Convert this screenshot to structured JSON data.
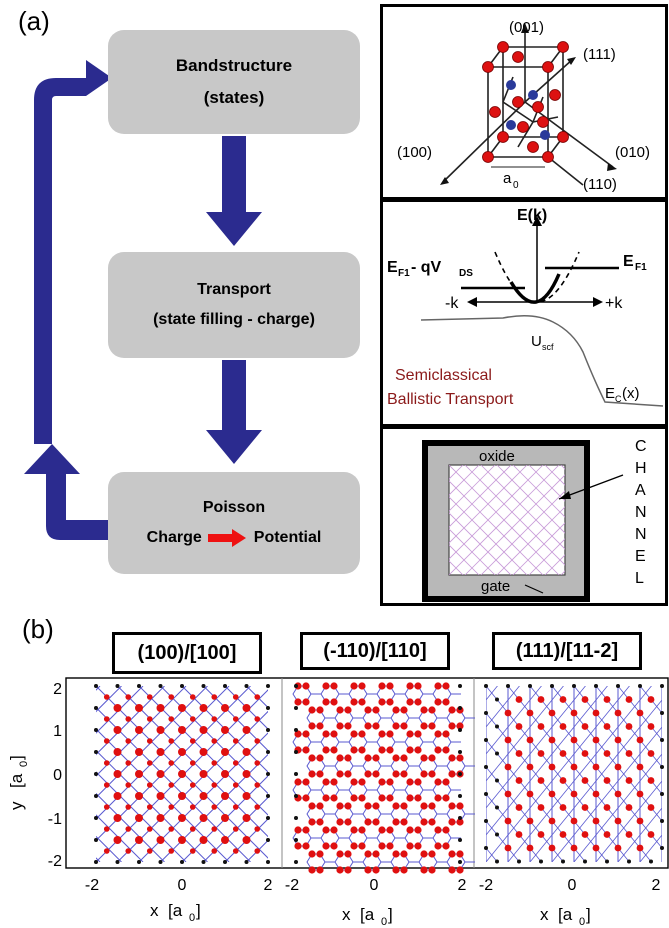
{
  "panel_a": {
    "label": "(a)",
    "flow": {
      "bandstructure": {
        "title": "Bandstructure",
        "subtitle": "(states)"
      },
      "transport": {
        "title": "Transport",
        "subtitle": "(state filling - charge)"
      },
      "poisson": {
        "title": "Poisson",
        "charge": "Charge",
        "potential": "Potential"
      }
    },
    "crystal": {
      "dir_001": "(001)",
      "dir_111": "(111)",
      "dir_100": "(100)",
      "dir_010": "(010)",
      "dir_110": "(110)",
      "a0": "a",
      "a0_sub": "0"
    },
    "transport_diagram": {
      "ek": "E(k)",
      "ef1_left": "E",
      "ef1_left_sub": "F1",
      "ef1_left_tail": " - qV",
      "ef1_left_tail_sub": "DS",
      "ef1_right": "E",
      "ef1_right_sub": "F1",
      "minus_k": "-k",
      "plus_k": "+k",
      "uscf": "U",
      "uscf_sub": "scf",
      "caption_line1": "Semiclassical",
      "caption_line2": "Ballistic Transport",
      "ec": "E",
      "ec_sub": "C",
      "ec_tail": "(x)"
    },
    "cross_section": {
      "oxide": "oxide",
      "gate": "gate",
      "channel_letters": [
        "C",
        "H",
        "A",
        "N",
        "N",
        "E",
        "L"
      ]
    }
  },
  "panel_b": {
    "label": "(b)",
    "titles": [
      "(100)/[100]",
      "(-110)/[110]",
      "(111)/[11-2]"
    ],
    "y_label": "y",
    "y_unit": "[a",
    "y_unit_sub": "0",
    "y_unit_close": "]",
    "x_label": "x",
    "x_unit": "[a",
    "x_unit_sub": "0",
    "x_unit_close": "]",
    "y_ticks": [
      "2",
      "1",
      "0",
      "-1",
      "-2"
    ],
    "x_ticks": [
      "-2",
      "0",
      "2"
    ]
  },
  "colors": {
    "arrow": "#2b2b8f",
    "box": "#c8c8c8",
    "atom_red": "#e01010",
    "bond_blue": "#5a5ad0",
    "caption_red": "#8b1a1a"
  }
}
